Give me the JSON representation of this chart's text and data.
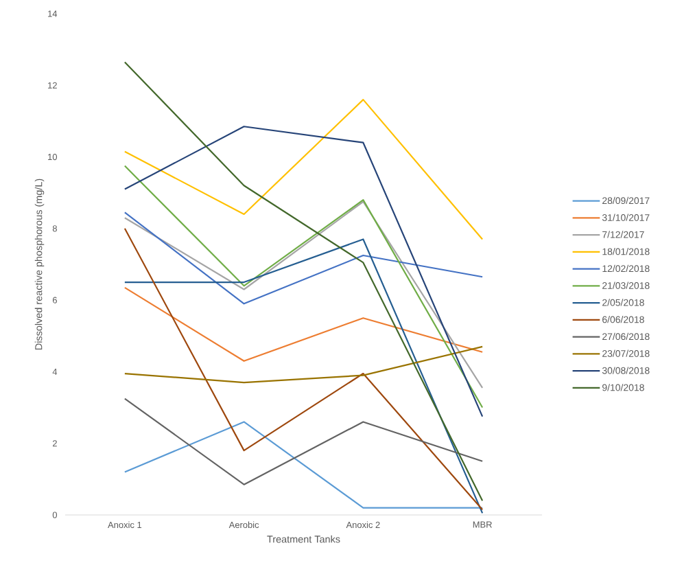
{
  "chart_data": {
    "type": "line",
    "xlabel": "Treatment Tanks",
    "ylabel": "Dissolved reactive phosphorous (mg/L)",
    "categories": [
      "Anoxic 1",
      "Aerobic",
      "Anoxic 2",
      "MBR"
    ],
    "ylim": [
      0,
      14
    ],
    "yticks": [
      0,
      2,
      4,
      6,
      8,
      10,
      12,
      14
    ],
    "legend": "right",
    "series": [
      {
        "name": "28/09/2017",
        "color": "#5b9bd5",
        "values": [
          1.2,
          2.6,
          0.2,
          0.2
        ]
      },
      {
        "name": "31/10/2017",
        "color": "#ed7d31",
        "values": [
          6.35,
          4.3,
          5.5,
          4.55
        ]
      },
      {
        "name": "7/12/2017",
        "color": "#a5a5a5",
        "values": [
          8.3,
          6.3,
          8.75,
          3.55
        ]
      },
      {
        "name": "18/01/2018",
        "color": "#ffc000",
        "values": [
          10.15,
          8.4,
          11.6,
          7.7
        ]
      },
      {
        "name": "12/02/2018",
        "color": "#4472c4",
        "values": [
          8.45,
          5.9,
          7.25,
          6.65
        ]
      },
      {
        "name": "21/03/2018",
        "color": "#70ad47",
        "values": [
          9.75,
          6.4,
          8.8,
          3.0
        ]
      },
      {
        "name": "2/05/2018",
        "color": "#255e91",
        "values": [
          6.5,
          6.5,
          7.7,
          0.05
        ]
      },
      {
        "name": "6/06/2018",
        "color": "#9e480e",
        "values": [
          8.0,
          1.8,
          3.95,
          0.15
        ]
      },
      {
        "name": "27/06/2018",
        "color": "#636363",
        "values": [
          3.25,
          0.85,
          2.6,
          1.5
        ]
      },
      {
        "name": "23/07/2018",
        "color": "#997300",
        "values": [
          3.95,
          3.7,
          3.9,
          4.7
        ]
      },
      {
        "name": "30/08/2018",
        "color": "#264478",
        "values": [
          9.1,
          10.85,
          10.4,
          2.75
        ]
      },
      {
        "name": "9/10/2018",
        "color": "#43682b",
        "values": [
          12.65,
          9.2,
          7.05,
          0.4
        ]
      }
    ]
  }
}
